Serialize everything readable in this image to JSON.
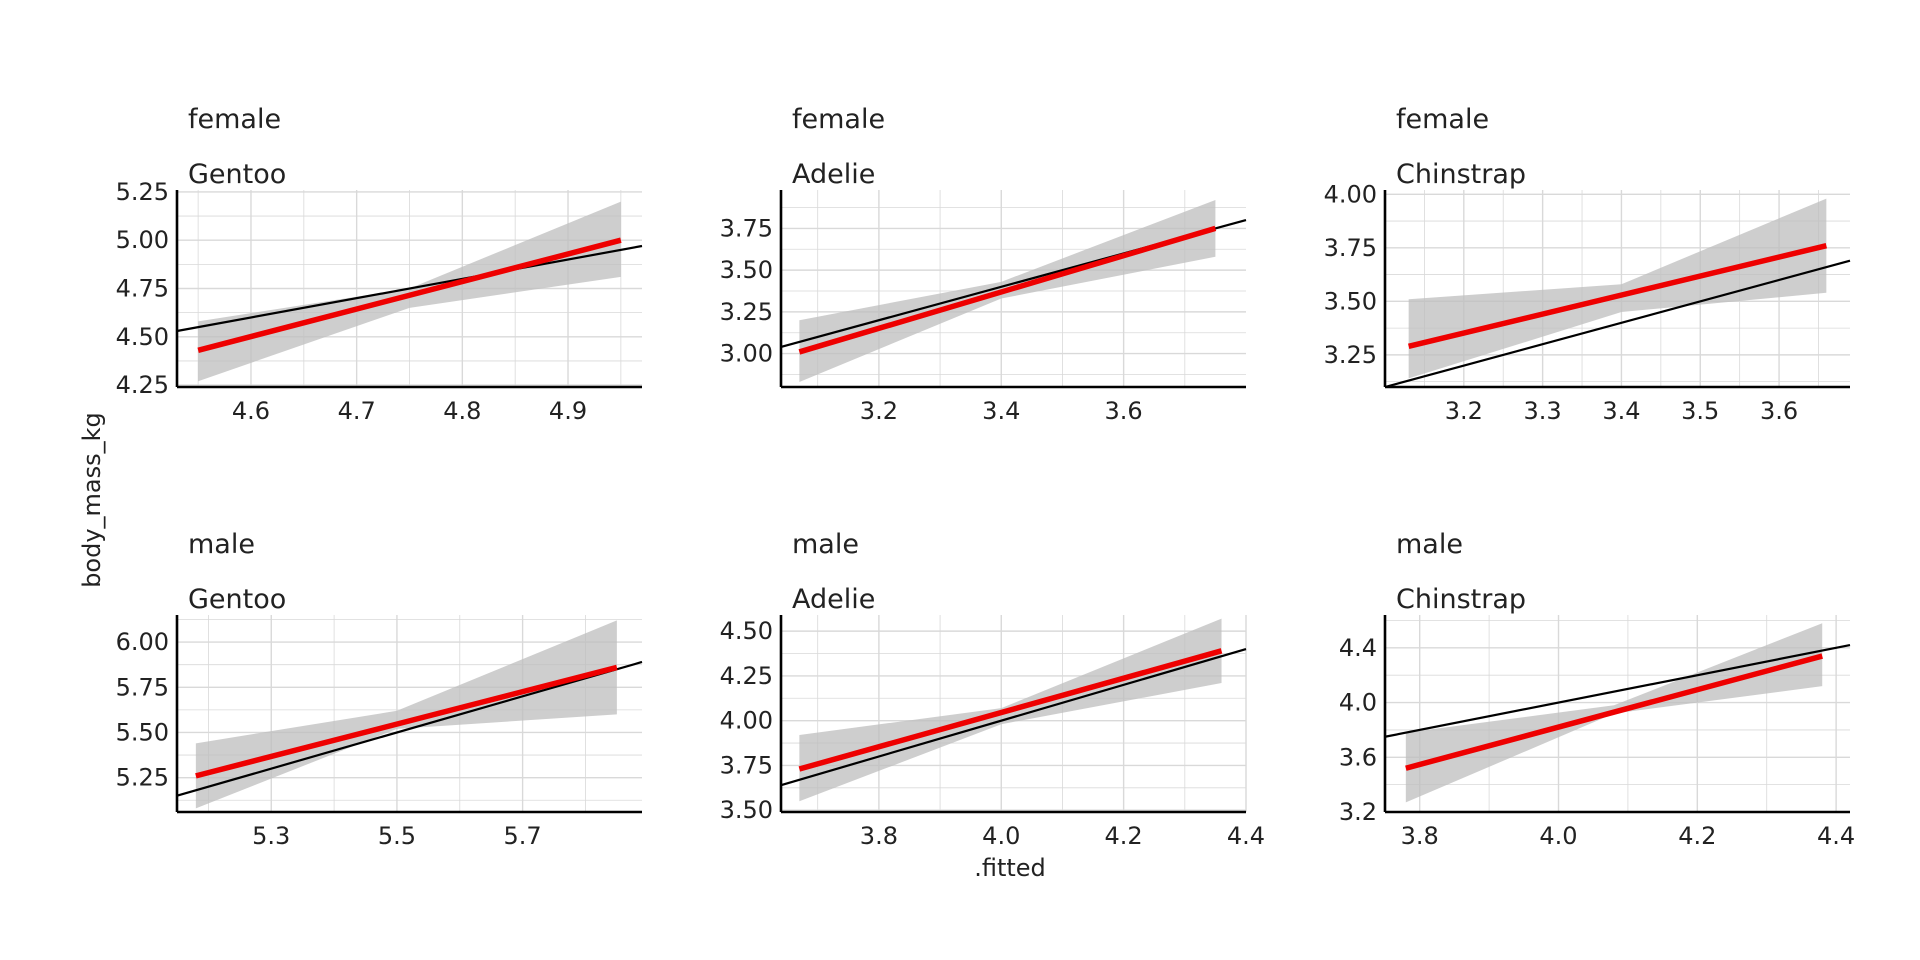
{
  "figure": {
    "xlabel": ".fitted",
    "ylabel": "body_mass_kg"
  },
  "chart_data": [
    {
      "type": "line",
      "row": 1,
      "col": 1,
      "strip": [
        "female",
        "Gentoo"
      ],
      "xlim": [
        4.53,
        4.97
      ],
      "ylim": [
        4.24,
        5.26
      ],
      "xticks": [
        {
          "v": 4.6,
          "label": "4.6"
        },
        {
          "v": 4.7,
          "label": "4.7"
        },
        {
          "v": 4.8,
          "label": "4.8"
        },
        {
          "v": 4.9,
          "label": "4.9"
        }
      ],
      "yticks": [
        {
          "v": 4.25,
          "label": "4.25"
        },
        {
          "v": 4.5,
          "label": "4.50"
        },
        {
          "v": 4.75,
          "label": "4.75"
        },
        {
          "v": 5.0,
          "label": "5.00"
        },
        {
          "v": 5.25,
          "label": "5.25"
        }
      ],
      "fit_line": [
        [
          4.55,
          4.43
        ],
        [
          4.95,
          5.0
        ]
      ],
      "band_upper": [
        [
          4.55,
          4.58
        ],
        [
          4.75,
          4.75
        ],
        [
          4.95,
          5.2
        ]
      ],
      "band_lower": [
        [
          4.55,
          4.27
        ],
        [
          4.75,
          4.65
        ],
        [
          4.95,
          4.81
        ]
      ],
      "reference_line": [
        [
          4.53,
          4.53
        ],
        [
          4.97,
          4.97
        ]
      ]
    },
    {
      "type": "line",
      "row": 1,
      "col": 2,
      "strip": [
        "female",
        "Adelie"
      ],
      "xlim": [
        3.04,
        3.8
      ],
      "ylim": [
        2.8,
        3.98
      ],
      "xticks": [
        {
          "v": 3.2,
          "label": "3.2"
        },
        {
          "v": 3.4,
          "label": "3.4"
        },
        {
          "v": 3.6,
          "label": "3.6"
        }
      ],
      "yticks": [
        {
          "v": 3.0,
          "label": "3.00"
        },
        {
          "v": 3.25,
          "label": "3.25"
        },
        {
          "v": 3.5,
          "label": "3.50"
        },
        {
          "v": 3.75,
          "label": "3.75"
        }
      ],
      "fit_line": [
        [
          3.07,
          3.01
        ],
        [
          3.75,
          3.75
        ]
      ],
      "band_upper": [
        [
          3.07,
          3.2
        ],
        [
          3.4,
          3.43
        ],
        [
          3.75,
          3.92
        ]
      ],
      "band_lower": [
        [
          3.07,
          2.83
        ],
        [
          3.4,
          3.33
        ],
        [
          3.75,
          3.58
        ]
      ],
      "reference_line": [
        [
          3.04,
          3.04
        ],
        [
          3.8,
          3.8
        ]
      ]
    },
    {
      "type": "line",
      "row": 1,
      "col": 3,
      "strip": [
        "female",
        "Chinstrap"
      ],
      "xlim": [
        3.1,
        3.69
      ],
      "ylim": [
        3.1,
        4.02
      ],
      "xticks": [
        {
          "v": 3.2,
          "label": "3.2"
        },
        {
          "v": 3.3,
          "label": "3.3"
        },
        {
          "v": 3.4,
          "label": "3.4"
        },
        {
          "v": 3.5,
          "label": "3.5"
        },
        {
          "v": 3.6,
          "label": "3.6"
        }
      ],
      "yticks": [
        {
          "v": 3.25,
          "label": "3.25"
        },
        {
          "v": 3.5,
          "label": "3.50"
        },
        {
          "v": 3.75,
          "label": "3.75"
        },
        {
          "v": 4.0,
          "label": "4.00"
        }
      ],
      "fit_line": [
        [
          3.13,
          3.29
        ],
        [
          3.66,
          3.76
        ]
      ],
      "band_upper": [
        [
          3.13,
          3.51
        ],
        [
          3.4,
          3.58
        ],
        [
          3.66,
          3.98
        ]
      ],
      "band_lower": [
        [
          3.13,
          3.14
        ],
        [
          3.4,
          3.45
        ],
        [
          3.66,
          3.54
        ]
      ],
      "reference_line": [
        [
          3.1,
          3.1
        ],
        [
          3.69,
          3.69
        ]
      ]
    },
    {
      "type": "line",
      "row": 2,
      "col": 1,
      "strip": [
        "male",
        "Gentoo"
      ],
      "xlim": [
        5.15,
        5.89
      ],
      "ylim": [
        5.06,
        6.15
      ],
      "xticks": [
        {
          "v": 5.3,
          "label": "5.3"
        },
        {
          "v": 5.5,
          "label": "5.5"
        },
        {
          "v": 5.7,
          "label": "5.7"
        }
      ],
      "yticks": [
        {
          "v": 5.25,
          "label": "5.25"
        },
        {
          "v": 5.5,
          "label": "5.50"
        },
        {
          "v": 5.75,
          "label": "5.75"
        },
        {
          "v": 6.0,
          "label": "6.00"
        }
      ],
      "fit_line": [
        [
          5.18,
          5.26
        ],
        [
          5.85,
          5.86
        ]
      ],
      "band_upper": [
        [
          5.18,
          5.44
        ],
        [
          5.5,
          5.62
        ],
        [
          5.85,
          6.12
        ]
      ],
      "band_lower": [
        [
          5.18,
          5.08
        ],
        [
          5.5,
          5.52
        ],
        [
          5.85,
          5.6
        ]
      ],
      "reference_line": [
        [
          5.15,
          5.15
        ],
        [
          5.89,
          5.89
        ]
      ]
    },
    {
      "type": "line",
      "row": 2,
      "col": 2,
      "strip": [
        "male",
        "Adelie"
      ],
      "xlim": [
        3.64,
        4.4
      ],
      "ylim": [
        3.49,
        4.59
      ],
      "xticks": [
        {
          "v": 3.8,
          "label": "3.8"
        },
        {
          "v": 4.0,
          "label": "4.0"
        },
        {
          "v": 4.2,
          "label": "4.2"
        },
        {
          "v": 4.4,
          "label": "4.4"
        }
      ],
      "yticks": [
        {
          "v": 3.5,
          "label": "3.50"
        },
        {
          "v": 3.75,
          "label": "3.75"
        },
        {
          "v": 4.0,
          "label": "4.00"
        },
        {
          "v": 4.25,
          "label": "4.25"
        },
        {
          "v": 4.5,
          "label": "4.50"
        }
      ],
      "fit_line": [
        [
          3.67,
          3.73
        ],
        [
          4.36,
          4.39
        ]
      ],
      "band_upper": [
        [
          3.67,
          3.92
        ],
        [
          4.0,
          4.07
        ],
        [
          4.36,
          4.57
        ]
      ],
      "band_lower": [
        [
          3.67,
          3.55
        ],
        [
          4.0,
          3.98
        ],
        [
          4.36,
          4.21
        ]
      ],
      "reference_line": [
        [
          3.64,
          3.64
        ],
        [
          4.4,
          4.4
        ]
      ]
    },
    {
      "type": "line",
      "row": 2,
      "col": 3,
      "strip": [
        "male",
        "Chinstrap"
      ],
      "xlim": [
        3.75,
        4.42
      ],
      "ylim": [
        3.2,
        4.64
      ],
      "xticks": [
        {
          "v": 3.8,
          "label": "3.8"
        },
        {
          "v": 4.0,
          "label": "4.0"
        },
        {
          "v": 4.2,
          "label": "4.2"
        },
        {
          "v": 4.4,
          "label": "4.4"
        }
      ],
      "yticks": [
        {
          "v": 3.2,
          "label": "3.2"
        },
        {
          "v": 3.6,
          "label": "3.6"
        },
        {
          "v": 4.0,
          "label": "4.0"
        },
        {
          "v": 4.4,
          "label": "4.4"
        }
      ],
      "fit_line": [
        [
          3.78,
          3.52
        ],
        [
          4.38,
          4.34
        ]
      ],
      "band_upper": [
        [
          3.78,
          3.78
        ],
        [
          4.08,
          3.98
        ],
        [
          4.38,
          4.58
        ]
      ],
      "band_lower": [
        [
          3.78,
          3.27
        ],
        [
          4.08,
          3.92
        ],
        [
          4.38,
          4.12
        ]
      ],
      "reference_line": [
        [
          3.75,
          3.75
        ],
        [
          4.42,
          4.42
        ]
      ]
    }
  ]
}
